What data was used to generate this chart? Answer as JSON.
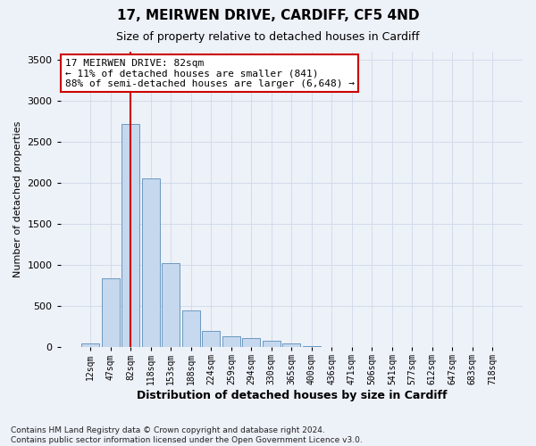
{
  "title1": "17, MEIRWEN DRIVE, CARDIFF, CF5 4ND",
  "title2": "Size of property relative to detached houses in Cardiff",
  "xlabel": "Distribution of detached houses by size in Cardiff",
  "ylabel": "Number of detached properties",
  "footnote": "Contains HM Land Registry data © Crown copyright and database right 2024.\nContains public sector information licensed under the Open Government Licence v3.0.",
  "categories": [
    "12sqm",
    "47sqm",
    "82sqm",
    "118sqm",
    "153sqm",
    "188sqm",
    "224sqm",
    "259sqm",
    "294sqm",
    "330sqm",
    "365sqm",
    "400sqm",
    "436sqm",
    "471sqm",
    "506sqm",
    "541sqm",
    "577sqm",
    "612sqm",
    "647sqm",
    "683sqm",
    "718sqm"
  ],
  "values": [
    50,
    840,
    2720,
    2050,
    1020,
    450,
    200,
    130,
    110,
    80,
    50,
    10,
    0,
    0,
    0,
    0,
    0,
    0,
    0,
    0,
    0
  ],
  "bar_color": "#c5d8ee",
  "bar_edge_color": "#5b8db8",
  "highlight_bar_index": 2,
  "highlight_line_color": "#cc0000",
  "ylim": [
    0,
    3600
  ],
  "yticks": [
    0,
    500,
    1000,
    1500,
    2000,
    2500,
    3000,
    3500
  ],
  "annotation_line1": "17 MEIRWEN DRIVE: 82sqm",
  "annotation_line2": "← 11% of detached houses are smaller (841)",
  "annotation_line3": "88% of semi-detached houses are larger (6,648) →",
  "annotation_box_edge": "#cc0000",
  "annotation_box_face": "#ffffff",
  "grid_color": "#d0d8e8",
  "bg_color": "#edf1f8",
  "title1_fontsize": 11,
  "title2_fontsize": 9,
  "xlabel_fontsize": 9,
  "ylabel_fontsize": 8,
  "ytick_fontsize": 8,
  "xtick_fontsize": 7,
  "footnote_fontsize": 6.5,
  "annot_fontsize": 8
}
